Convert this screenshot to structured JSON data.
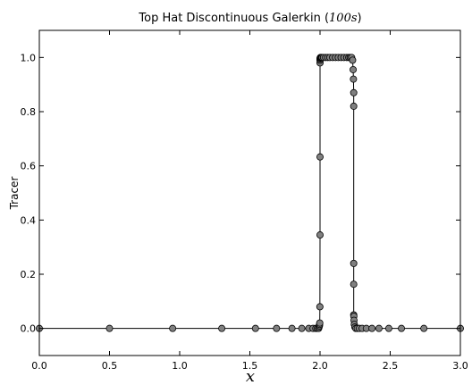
{
  "chart_data": {
    "type": "line",
    "title": "Top Hat Discontinuous Galerkin (",
    "title_time": "100s",
    "title_close": ")",
    "xlabel": "x",
    "ylabel": "Tracer",
    "xlim": [
      0.0,
      3.0
    ],
    "ylim": [
      -0.1,
      1.1
    ],
    "xticks": [
      0.0,
      0.5,
      1.0,
      1.5,
      2.0,
      2.5,
      3.0
    ],
    "xtick_labels": [
      "0.0",
      "0.5",
      "1.0",
      "1.5",
      "2.0",
      "2.5",
      "3.0"
    ],
    "yticks": [
      0.0,
      0.2,
      0.4,
      0.6,
      0.8,
      1.0
    ],
    "ytick_labels": [
      "0.0",
      "0.2",
      "0.4",
      "0.6",
      "0.8",
      "1.0"
    ],
    "grid": false,
    "line_color": "#000000",
    "marker_fill": "#808080",
    "marker_edge": "#000000",
    "series": [
      {
        "x": [
          0.0,
          0.5,
          0.95,
          1.3,
          1.54,
          1.69,
          1.8,
          1.87,
          1.92,
          1.95,
          1.97,
          1.98,
          1.99,
          1.993,
          1.996,
          1.997,
          1.998,
          1.999,
          2.0,
          2.0,
          2.0,
          2.0,
          2.0,
          2.001,
          2.003,
          2.006,
          2.01,
          2.015,
          2.025,
          2.04,
          2.055,
          2.07,
          2.09,
          2.11,
          2.13,
          2.15,
          2.17,
          2.19,
          2.205,
          2.215,
          2.225,
          2.232,
          2.236,
          2.238,
          2.24,
          2.24,
          2.24,
          2.24,
          2.24,
          2.241,
          2.242,
          2.244,
          2.248,
          2.255,
          2.265,
          2.28,
          2.3,
          2.33,
          2.37,
          2.42,
          2.49,
          2.58,
          2.74,
          3.0
        ],
        "y": [
          0.0,
          0.0,
          0.0,
          0.0,
          0.0,
          0.0,
          0.0,
          0.0,
          0.0,
          0.0,
          0.0,
          0.0,
          0.0,
          0.005,
          0.01,
          0.015,
          0.02,
          0.08,
          0.345,
          0.633,
          0.98,
          0.99,
          0.995,
          0.998,
          1.0,
          1.0,
          1.0,
          1.0,
          1.0,
          1.0,
          1.0,
          1.0,
          1.0,
          1.0,
          1.0,
          1.0,
          1.0,
          1.0,
          1.0,
          1.0,
          1.0,
          0.99,
          0.955,
          0.92,
          0.87,
          0.82,
          0.24,
          0.163,
          0.05,
          0.045,
          0.03,
          0.015,
          0.005,
          0.0,
          0.0,
          0.0,
          0.0,
          0.0,
          0.0,
          0.0,
          0.0,
          0.0,
          0.0,
          0.0
        ]
      }
    ]
  }
}
